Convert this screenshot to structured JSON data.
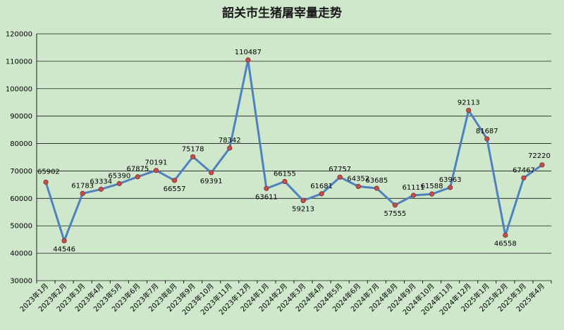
{
  "chart_data": {
    "type": "line",
    "title": "韶关市生猪屠宰量走势",
    "xlabel": "",
    "ylabel": "",
    "ylim": [
      30000,
      120000
    ],
    "yticks": [
      30000,
      40000,
      50000,
      60000,
      70000,
      80000,
      90000,
      100000,
      110000,
      120000
    ],
    "grid": true,
    "legend": "none",
    "colors": {
      "line": "#4f81bd",
      "marker": "#c0504d",
      "background": "#cfe8cc"
    },
    "categories": [
      "2023年1月",
      "2023年2月",
      "2023年3月",
      "2023年4月",
      "2023年5月",
      "2023年6月",
      "2023年7月",
      "2023年8月",
      "2023年9月",
      "2023年10月",
      "2023年11月",
      "2023年12月",
      "2024年1月",
      "2024年2月",
      "2024年3月",
      "2024年4月",
      "2024年5月",
      "2024年6月",
      "2024年7月",
      "2024年8月",
      "2024年9月",
      "2024年10月",
      "2024年11月",
      "2024年12月",
      "2025年1月",
      "2025年2月",
      "2025年3月",
      "2025年4月"
    ],
    "series": [
      {
        "values": [
          65902,
          44546,
          61783,
          63334,
          65390,
          67875,
          70191,
          66557,
          75178,
          69391,
          78342,
          110487,
          63611,
          66155,
          59213,
          61681,
          67757,
          64352,
          63685,
          57555,
          61111,
          61588,
          63963,
          92113,
          81687,
          46558,
          67467,
          72220
        ]
      }
    ]
  }
}
